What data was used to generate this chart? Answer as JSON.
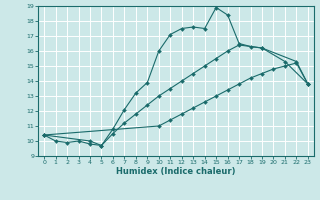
{
  "xlabel": "Humidex (Indice chaleur)",
  "xlim": [
    -0.5,
    23.5
  ],
  "ylim": [
    9,
    19
  ],
  "xticks": [
    0,
    1,
    2,
    3,
    4,
    5,
    6,
    7,
    8,
    9,
    10,
    11,
    12,
    13,
    14,
    15,
    16,
    17,
    18,
    19,
    20,
    21,
    22,
    23
  ],
  "yticks": [
    9,
    10,
    11,
    12,
    13,
    14,
    15,
    16,
    17,
    18,
    19
  ],
  "bg_color": "#cce8e8",
  "grid_color": "#b0d8d8",
  "line_color": "#1a6b6b",
  "s1x": [
    0,
    1,
    2,
    3,
    4,
    5,
    6,
    7,
    8,
    9,
    10,
    11,
    12,
    13,
    14,
    15,
    16,
    17,
    18,
    19,
    21,
    23
  ],
  "s1y": [
    10.4,
    10.0,
    9.9,
    10.0,
    9.8,
    9.7,
    10.8,
    12.1,
    13.2,
    13.9,
    16.0,
    17.1,
    17.5,
    17.6,
    17.5,
    18.9,
    18.4,
    16.5,
    16.3,
    16.2,
    15.3,
    13.8
  ],
  "s2x": [
    0,
    4,
    5,
    6,
    7,
    8,
    9,
    10,
    11,
    12,
    13,
    14,
    15,
    16,
    17,
    19,
    22,
    23
  ],
  "s2y": [
    10.4,
    10.0,
    9.7,
    10.5,
    11.2,
    11.8,
    12.4,
    13.0,
    13.5,
    14.0,
    14.5,
    15.0,
    15.5,
    16.0,
    16.4,
    16.2,
    15.3,
    13.8
  ],
  "s3x": [
    0,
    10,
    11,
    12,
    13,
    14,
    15,
    16,
    17,
    18,
    19,
    20,
    21,
    22,
    23
  ],
  "s3y": [
    10.4,
    11.0,
    11.4,
    11.8,
    12.2,
    12.6,
    13.0,
    13.4,
    13.8,
    14.2,
    14.5,
    14.8,
    15.0,
    15.2,
    13.8
  ]
}
